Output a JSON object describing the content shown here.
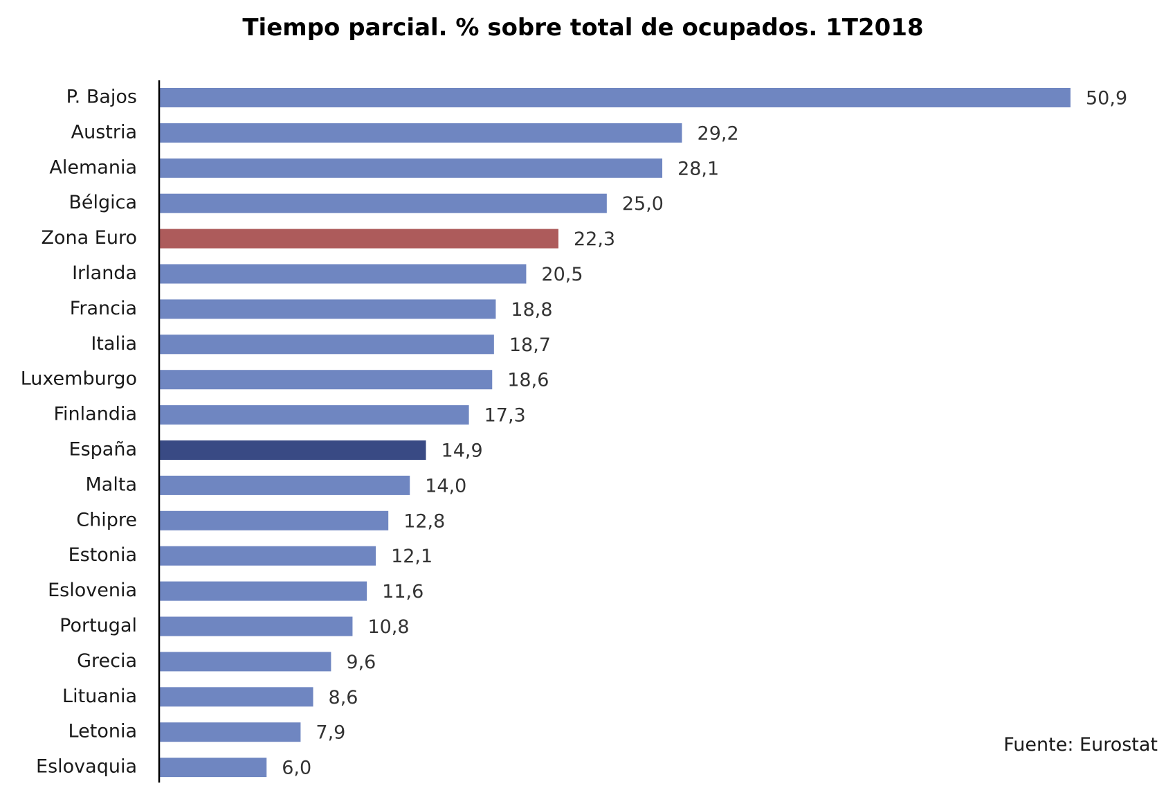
{
  "chart_data": {
    "type": "bar",
    "orientation": "horizontal",
    "title": "Tiempo parcial. % sobre total de ocupados. 1T2018",
    "source": "Fuente: Eurostat",
    "categories": [
      "P. Bajos",
      "Austria",
      "Alemania",
      "Bélgica",
      "Zona Euro",
      "Irlanda",
      "Francia",
      "Italia",
      "Luxemburgo",
      "Finlandia",
      "España",
      "Malta",
      "Chipre",
      "Estonia",
      "Eslovenia",
      "Portugal",
      "Grecia",
      "Lituania",
      "Letonia",
      "Eslovaquia"
    ],
    "values": [
      50.9,
      29.2,
      28.1,
      25.0,
      22.3,
      20.5,
      18.8,
      18.7,
      18.6,
      17.3,
      14.9,
      14.0,
      12.8,
      12.1,
      11.6,
      10.8,
      9.6,
      8.6,
      7.9,
      6.0
    ],
    "value_labels": [
      "50,9",
      "29,2",
      "28,1",
      "25,0",
      "22,3",
      "20,5",
      "18,8",
      "18,7",
      "18,6",
      "17,3",
      "14,9",
      "14,0",
      "12,8",
      "12,1",
      "11,6",
      "10,8",
      "9,6",
      "8,6",
      "7,9",
      "6,0"
    ],
    "xlim": [
      0,
      50.9
    ],
    "grid": false,
    "legend": "none",
    "colors": {
      "default": "#6f86c1",
      "highlights": {
        "Zona Euro": "#ad5b5b",
        "España": "#394a84"
      },
      "axis": "#000000"
    }
  }
}
